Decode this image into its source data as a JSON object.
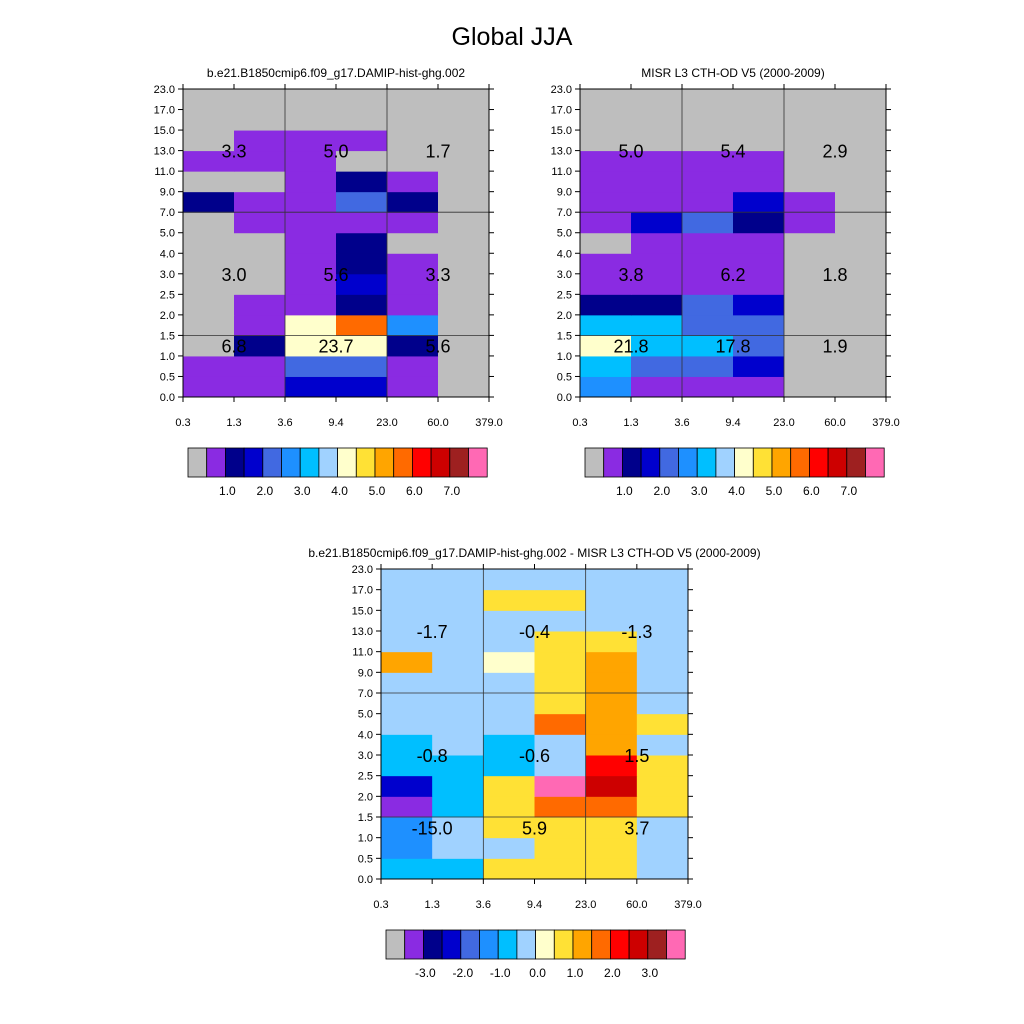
{
  "page": {
    "title": "Global JJA"
  },
  "chart_data": [
    {
      "type": "heatmap",
      "title": "b.e21.B1850cmip6.f09_g17.DAMIP-hist-ghg.002",
      "x_ticks": [
        "0.3",
        "1.3",
        "3.6",
        "9.4",
        "23.0",
        "60.0",
        "379.0"
      ],
      "y_ticks": [
        "0.0",
        "0.5",
        "1.0",
        "1.5",
        "2.0",
        "2.5",
        "3.0",
        "4.0",
        "5.0",
        "7.0",
        "9.0",
        "11.0",
        "13.0",
        "15.0",
        "17.0",
        "23.0"
      ],
      "grid": {
        "x_tick_index": [
          2,
          4
        ],
        "y_tick_index": [
          3,
          9
        ]
      },
      "cell_levels": [
        [
          1,
          1,
          3,
          3,
          1,
          0
        ],
        [
          1,
          1,
          4,
          4,
          1,
          0
        ],
        [
          0,
          2,
          8,
          8,
          2,
          0
        ],
        [
          0,
          1,
          8,
          11,
          5,
          0
        ],
        [
          0,
          1,
          1,
          2,
          1,
          0
        ],
        [
          0,
          0,
          1,
          3,
          1,
          0
        ],
        [
          0,
          0,
          1,
          2,
          1,
          0
        ],
        [
          0,
          0,
          1,
          2,
          0,
          0
        ],
        [
          0,
          1,
          1,
          1,
          1,
          0
        ],
        [
          2,
          1,
          1,
          4,
          2,
          0
        ],
        [
          0,
          0,
          1,
          2,
          1,
          0
        ],
        [
          1,
          1,
          1,
          0,
          0,
          0
        ],
        [
          0,
          1,
          1,
          1,
          0,
          0
        ],
        [
          0,
          0,
          0,
          0,
          0,
          0
        ],
        [
          0,
          0,
          0,
          0,
          0,
          0
        ]
      ],
      "box_values": [
        [
          "6.8",
          "23.7",
          "5.6"
        ],
        [
          "3.0",
          "5.6",
          "3.3"
        ],
        [
          "3.3",
          "5.0",
          "1.7"
        ]
      ],
      "colorbar_labels": [
        "1.0",
        "2.0",
        "3.0",
        "4.0",
        "5.0",
        "6.0",
        "7.0"
      ]
    },
    {
      "type": "heatmap",
      "title": "MISR L3 CTH-OD V5 (2000-2009)",
      "x_ticks": [
        "0.3",
        "1.3",
        "3.6",
        "9.4",
        "23.0",
        "60.0",
        "379.0"
      ],
      "y_ticks": [
        "0.0",
        "0.5",
        "1.0",
        "1.5",
        "2.0",
        "2.5",
        "3.0",
        "4.0",
        "5.0",
        "7.0",
        "9.0",
        "11.0",
        "13.0",
        "15.0",
        "17.0",
        "23.0"
      ],
      "grid": {
        "x_tick_index": [
          2,
          4
        ],
        "y_tick_index": [
          3,
          9
        ]
      },
      "cell_levels": [
        [
          5,
          1,
          1,
          1,
          0,
          0
        ],
        [
          6,
          4,
          4,
          3,
          0,
          0
        ],
        [
          8,
          6,
          6,
          4,
          0,
          0
        ],
        [
          6,
          6,
          4,
          4,
          0,
          0
        ],
        [
          2,
          2,
          4,
          3,
          0,
          0
        ],
        [
          1,
          1,
          1,
          1,
          0,
          0
        ],
        [
          1,
          1,
          1,
          1,
          0,
          0
        ],
        [
          0,
          1,
          1,
          1,
          0,
          0
        ],
        [
          1,
          3,
          4,
          2,
          1,
          0
        ],
        [
          1,
          1,
          1,
          3,
          1,
          0
        ],
        [
          1,
          1,
          1,
          1,
          0,
          0
        ],
        [
          1,
          1,
          1,
          1,
          0,
          0
        ],
        [
          0,
          0,
          0,
          0,
          0,
          0
        ],
        [
          0,
          0,
          0,
          0,
          0,
          0
        ],
        [
          0,
          0,
          0,
          0,
          0,
          0
        ]
      ],
      "box_values": [
        [
          "21.8",
          "17.8",
          "1.9"
        ],
        [
          "3.8",
          "6.2",
          "1.8"
        ],
        [
          "5.0",
          "5.4",
          "2.9"
        ]
      ],
      "colorbar_labels": [
        "1.0",
        "2.0",
        "3.0",
        "4.0",
        "5.0",
        "6.0",
        "7.0"
      ]
    },
    {
      "type": "heatmap",
      "title": "b.e21.B1850cmip6.f09_g17.DAMIP-hist-ghg.002 - MISR L3 CTH-OD V5 (2000-2009)",
      "x_ticks": [
        "0.3",
        "1.3",
        "3.6",
        "9.4",
        "23.0",
        "60.0",
        "379.0"
      ],
      "y_ticks": [
        "0.0",
        "0.5",
        "1.0",
        "1.5",
        "2.0",
        "2.5",
        "3.0",
        "4.0",
        "5.0",
        "7.0",
        "9.0",
        "11.0",
        "13.0",
        "15.0",
        "17.0",
        "23.0"
      ],
      "grid": {
        "x_tick_index": [
          2,
          4
        ],
        "y_tick_index": [
          3,
          9
        ]
      },
      "cell_levels": [
        [
          6,
          6,
          9,
          9,
          9,
          7
        ],
        [
          5,
          7,
          7,
          9,
          9,
          7
        ],
        [
          5,
          7,
          9,
          9,
          9,
          7
        ],
        [
          1,
          6,
          9,
          11,
          11,
          9
        ],
        [
          3,
          6,
          9,
          16,
          13,
          9
        ],
        [
          6,
          6,
          6,
          7,
          12,
          9
        ],
        [
          6,
          7,
          6,
          7,
          10,
          7
        ],
        [
          7,
          7,
          7,
          11,
          10,
          9
        ],
        [
          7,
          7,
          7,
          9,
          10,
          7
        ],
        [
          7,
          7,
          7,
          9,
          10,
          7
        ],
        [
          10,
          7,
          8,
          9,
          10,
          7
        ],
        [
          7,
          7,
          7,
          9,
          9,
          7
        ],
        [
          7,
          7,
          7,
          7,
          7,
          7
        ],
        [
          7,
          7,
          9,
          9,
          7,
          7
        ],
        [
          7,
          7,
          7,
          7,
          7,
          7
        ]
      ],
      "box_values": [
        [
          "-15.0",
          "5.9",
          "3.7"
        ],
        [
          "-0.8",
          "-0.6",
          "1.5"
        ],
        [
          "-1.7",
          "-0.4",
          "-1.3"
        ]
      ],
      "colorbar_labels": [
        "-3.0",
        "-2.0",
        "-1.0",
        "0.0",
        "1.0",
        "2.0",
        "3.0"
      ]
    }
  ],
  "palette": [
    "#bebebe",
    "#8a2be2",
    "#00008b",
    "#0000cd",
    "#4169e1",
    "#1e90ff",
    "#00bfff",
    "#a0d2ff",
    "#ffffcc",
    "#ffe135",
    "#ffa500",
    "#ff6a00",
    "#ff0000",
    "#cd0000",
    "#9e2020",
    "#ff69b4",
    "#ff69b4"
  ]
}
